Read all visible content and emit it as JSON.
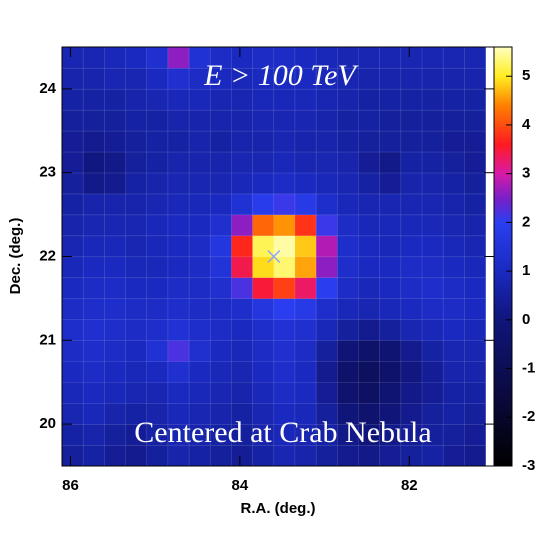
{
  "chart_data": {
    "type": "heatmap",
    "title": "E > 100 TeV",
    "annotation": "Centered at Crab Nebula",
    "x_label": "R.A. (deg.)",
    "y_label": "Dec. (deg.)",
    "xlim": [
      86.1,
      81.0
    ],
    "ylim": [
      19.5,
      24.5
    ],
    "xticks": [
      86,
      84,
      82
    ],
    "yticks": [
      20,
      21,
      22,
      23,
      24
    ],
    "zlim": [
      -3,
      5.6
    ],
    "zticks": [
      -3,
      -2,
      -1,
      0,
      1,
      2,
      3,
      4,
      5
    ],
    "colorscale": [
      [
        -3,
        "#000000"
      ],
      [
        -1.5,
        "#0a0a40"
      ],
      [
        0,
        "#10157a"
      ],
      [
        1,
        "#1a2ac0"
      ],
      [
        2,
        "#2a3ef0"
      ],
      [
        2.5,
        "#7a1fc8"
      ],
      [
        3,
        "#d81aa8"
      ],
      [
        3.6,
        "#ff1a20"
      ],
      [
        4.4,
        "#ff8000"
      ],
      [
        5,
        "#ffee20"
      ],
      [
        5.6,
        "#ffffc0"
      ]
    ],
    "source_marker": {
      "x": 83.6,
      "y": 22.0,
      "color": "#8aa0ff"
    },
    "x": [
      85.975,
      85.725,
      85.475,
      85.225,
      84.975,
      84.725,
      84.475,
      84.225,
      83.975,
      83.725,
      83.475,
      83.225,
      82.975,
      82.725,
      82.475,
      82.225,
      81.975,
      81.725,
      81.475,
      81.225
    ],
    "y": [
      19.625,
      19.875,
      20.125,
      20.375,
      20.625,
      20.875,
      21.125,
      21.375,
      21.625,
      21.875,
      22.125,
      22.375,
      22.625,
      22.875,
      23.125,
      23.375,
      23.625,
      23.875,
      24.125,
      24.375
    ],
    "z": [
      [
        0.5,
        0.6,
        0.4,
        0.3,
        0.5,
        0.7,
        0.6,
        0.5,
        0.4,
        0.6,
        0.8,
        0.7,
        0.5,
        0.3,
        0.2,
        0.4,
        0.5,
        0.6,
        0.4,
        0.3
      ],
      [
        0.6,
        0.7,
        0.5,
        0.4,
        0.6,
        0.8,
        0.7,
        0.6,
        0.5,
        0.7,
        0.9,
        0.8,
        0.6,
        0.2,
        0.0,
        0.2,
        0.4,
        0.5,
        0.5,
        0.4
      ],
      [
        0.8,
        0.9,
        0.7,
        0.6,
        0.7,
        0.9,
        0.8,
        0.7,
        0.6,
        0.8,
        1.0,
        0.9,
        0.5,
        0.0,
        -0.3,
        0.0,
        0.3,
        0.5,
        0.6,
        0.5
      ],
      [
        0.9,
        1.0,
        0.9,
        0.8,
        0.8,
        1.0,
        0.9,
        0.8,
        0.7,
        0.9,
        1.1,
        1.0,
        0.4,
        -0.3,
        -0.6,
        -0.2,
        0.2,
        0.4,
        0.6,
        0.6
      ],
      [
        1.0,
        1.1,
        1.0,
        0.9,
        1.0,
        1.3,
        1.0,
        0.9,
        0.8,
        1.0,
        1.2,
        1.0,
        0.3,
        -0.4,
        -0.7,
        -0.4,
        0.1,
        0.4,
        0.7,
        0.7
      ],
      [
        1.1,
        1.2,
        1.1,
        1.0,
        1.4,
        2.2,
        1.3,
        1.0,
        0.9,
        1.1,
        1.3,
        1.1,
        0.5,
        -0.1,
        -0.4,
        -0.2,
        0.3,
        0.6,
        0.8,
        0.8
      ],
      [
        1.2,
        1.3,
        1.2,
        1.1,
        1.2,
        1.4,
        1.2,
        1.1,
        1.0,
        1.2,
        1.4,
        1.3,
        0.9,
        0.5,
        0.3,
        0.5,
        0.8,
        0.9,
        1.0,
        0.9
      ],
      [
        1.1,
        1.2,
        1.2,
        1.1,
        1.1,
        1.2,
        1.1,
        1.1,
        1.2,
        1.6,
        2.0,
        1.8,
        1.2,
        0.9,
        0.8,
        0.9,
        1.0,
        1.1,
        1.1,
        1.0
      ],
      [
        1.0,
        1.1,
        1.1,
        1.0,
        1.0,
        1.1,
        1.1,
        1.3,
        2.2,
        3.5,
        3.9,
        3.3,
        2.0,
        1.1,
        0.9,
        1.0,
        1.1,
        1.2,
        1.1,
        1.0
      ],
      [
        0.9,
        1.0,
        1.0,
        0.9,
        0.9,
        1.0,
        1.1,
        1.5,
        3.4,
        4.9,
        5.3,
        4.6,
        2.6,
        1.2,
        1.0,
        1.0,
        1.1,
        1.1,
        1.0,
        0.9
      ],
      [
        0.8,
        0.9,
        0.9,
        0.8,
        0.9,
        1.0,
        1.1,
        1.6,
        3.7,
        5.2,
        5.5,
        4.8,
        2.8,
        1.2,
        1.0,
        0.9,
        1.0,
        1.0,
        0.9,
        0.8
      ],
      [
        0.7,
        0.8,
        0.8,
        0.8,
        0.9,
        1.0,
        1.0,
        1.3,
        2.6,
        4.2,
        4.5,
        3.8,
        2.1,
        1.1,
        0.9,
        0.9,
        0.9,
        0.9,
        0.8,
        0.7
      ],
      [
        0.6,
        0.7,
        0.7,
        0.7,
        0.8,
        0.9,
        0.9,
        1.0,
        1.4,
        1.9,
        2.1,
        1.8,
        1.2,
        0.9,
        0.8,
        0.8,
        0.8,
        0.8,
        0.7,
        0.6
      ],
      [
        0.5,
        0.2,
        0.3,
        0.6,
        0.7,
        0.8,
        0.8,
        0.8,
        0.9,
        1.0,
        1.1,
        1.0,
        0.9,
        0.8,
        0.6,
        0.4,
        0.7,
        0.7,
        0.6,
        0.5
      ],
      [
        0.4,
        0.1,
        0.2,
        0.5,
        0.6,
        0.7,
        0.7,
        0.7,
        0.8,
        0.8,
        0.9,
        0.8,
        0.8,
        0.7,
        0.4,
        0.2,
        0.6,
        0.6,
        0.5,
        0.4
      ],
      [
        0.4,
        0.3,
        0.4,
        0.5,
        0.6,
        0.6,
        0.7,
        0.6,
        0.7,
        0.7,
        0.8,
        0.7,
        0.7,
        0.6,
        0.5,
        0.5,
        0.5,
        0.5,
        0.4,
        0.4
      ],
      [
        0.5,
        0.5,
        0.5,
        0.6,
        0.6,
        0.7,
        0.7,
        0.7,
        0.7,
        0.8,
        0.8,
        0.8,
        0.7,
        0.6,
        0.6,
        0.5,
        0.5,
        0.5,
        0.5,
        0.5
      ],
      [
        0.6,
        0.6,
        0.6,
        0.7,
        0.8,
        0.9,
        0.9,
        0.8,
        0.8,
        0.9,
        0.9,
        0.9,
        0.8,
        0.7,
        0.6,
        0.6,
        0.6,
        0.6,
        0.6,
        0.6
      ],
      [
        0.7,
        0.7,
        0.8,
        0.8,
        1.0,
        1.3,
        1.1,
        1.0,
        0.9,
        1.0,
        1.0,
        1.0,
        0.9,
        0.8,
        0.7,
        0.7,
        0.7,
        0.7,
        0.7,
        0.7
      ],
      [
        0.8,
        0.8,
        0.9,
        1.0,
        1.3,
        2.6,
        1.4,
        1.1,
        1.0,
        1.1,
        1.1,
        1.0,
        0.9,
        0.8,
        0.8,
        0.8,
        0.8,
        0.8,
        0.8,
        0.8
      ]
    ]
  }
}
